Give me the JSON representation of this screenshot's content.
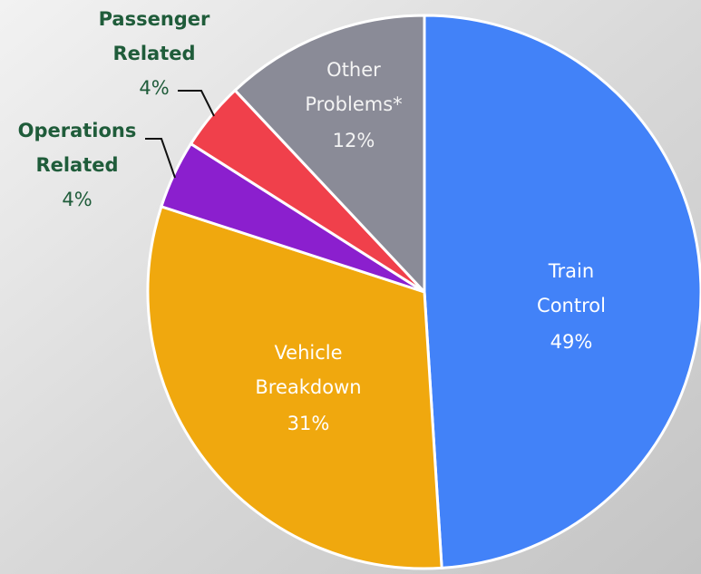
{
  "chart_data": {
    "type": "pie",
    "categories": [
      "Train Control",
      "Vehicle Breakdown",
      "Operations Related",
      "Passenger Related",
      "Other Problems*"
    ],
    "values": [
      49,
      31,
      4,
      4,
      12
    ],
    "value_labels": [
      "49%",
      "31%",
      "4%",
      "4%",
      "12%"
    ],
    "colors": [
      "#4282f8",
      "#f0a80e",
      "#8b1fce",
      "#f0404b",
      "#8a8b97"
    ]
  }
}
